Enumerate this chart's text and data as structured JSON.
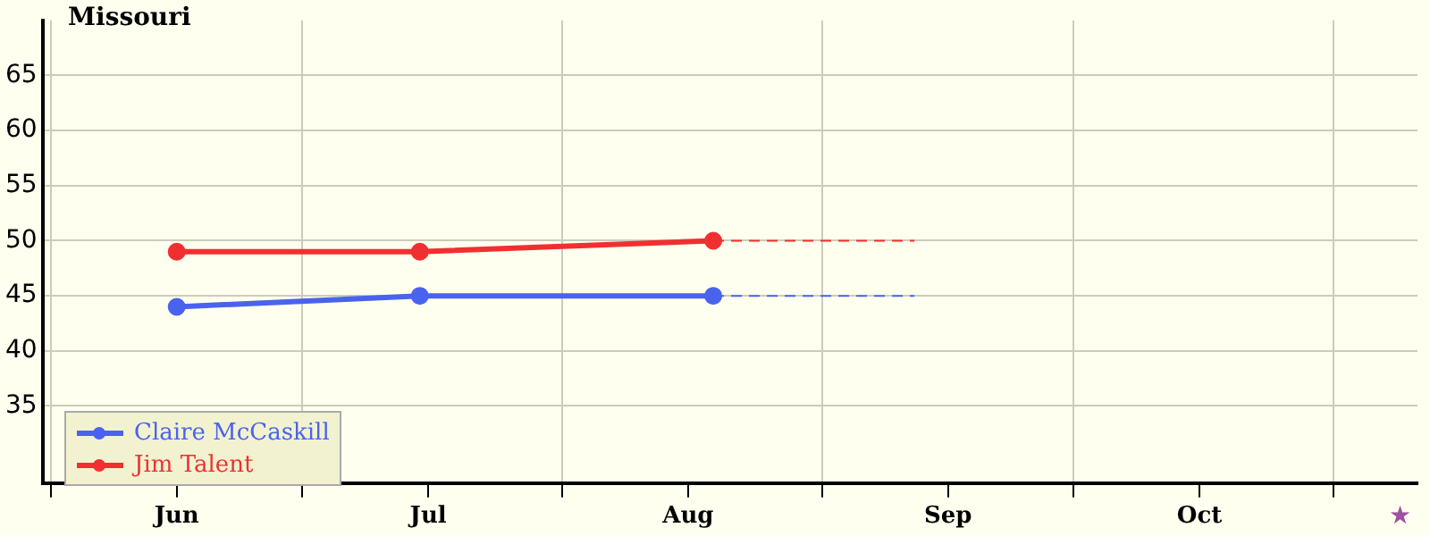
{
  "chart_data": {
    "type": "line",
    "title": "Missouri",
    "x": [
      "--06-16",
      "--07-15",
      "--08-19"
    ],
    "annotations": [
      "★"
    ],
    "series": [
      {
        "name": "Claire McCaskill",
        "color": "#4a63ee",
        "values": [
          44,
          45,
          45
        ]
      },
      {
        "name": "Jim Talent",
        "color": "#f03030",
        "values": [
          49,
          49,
          50
        ]
      },
      {
        "type": "line",
        "color": "#4a63ee",
        "line_style": "dashed",
        "marker": "none",
        "x": [
          "--08-19",
          "--09-12"
        ],
        "values": [
          45,
          45
        ]
      },
      {
        "type": "line",
        "color": "#f03030",
        "line_style": "dashed",
        "marker": "none",
        "x": [
          "--08-19",
          "--09-12"
        ],
        "values": [
          50,
          50
        ]
      }
    ],
    "xlim": [
      "--05-31",
      "--11-11"
    ],
    "xticks": [
      {
        "value": "--06-01",
        "label": null
      },
      {
        "value": "--06-16",
        "label": "Jun"
      },
      {
        "value": "--07-01",
        "label": null
      },
      {
        "value": "--07-16",
        "label": "Jul"
      },
      {
        "value": "--08-01",
        "label": null
      },
      {
        "value": "--08-16",
        "label": "Aug"
      },
      {
        "value": "--09-01",
        "label": null
      },
      {
        "value": "--09-16",
        "label": "Sep"
      },
      {
        "value": "--10-01",
        "label": null
      },
      {
        "value": "--10-16",
        "label": "Oct"
      },
      {
        "value": "--11-01",
        "label": null
      }
    ],
    "ylim": [
      28,
      70
    ],
    "yticks": [
      35,
      40,
      45,
      50,
      55,
      60,
      65
    ],
    "grid": true,
    "legend": "bottom left",
    "marker": "circle",
    "line_style": "solid"
  }
}
